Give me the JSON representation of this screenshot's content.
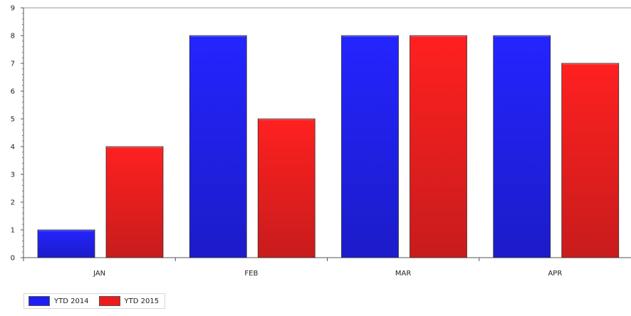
{
  "chart_data": {
    "type": "bar",
    "categories": [
      "JAN",
      "FEB",
      "MAR",
      "APR"
    ],
    "series": [
      {
        "name": "YTD 2014",
        "values": [
          1,
          8,
          8,
          8
        ],
        "color": "#1f1ff5"
      },
      {
        "name": "YTD 2015",
        "values": [
          4,
          5,
          8,
          7
        ],
        "color": "#ef1a1a"
      }
    ],
    "y_ticks": [
      "0",
      "1",
      "2",
      "3",
      "4",
      "5",
      "6",
      "7",
      "8",
      "9"
    ],
    "ylim": [
      0,
      9
    ],
    "legend_position": "bottom-left"
  }
}
